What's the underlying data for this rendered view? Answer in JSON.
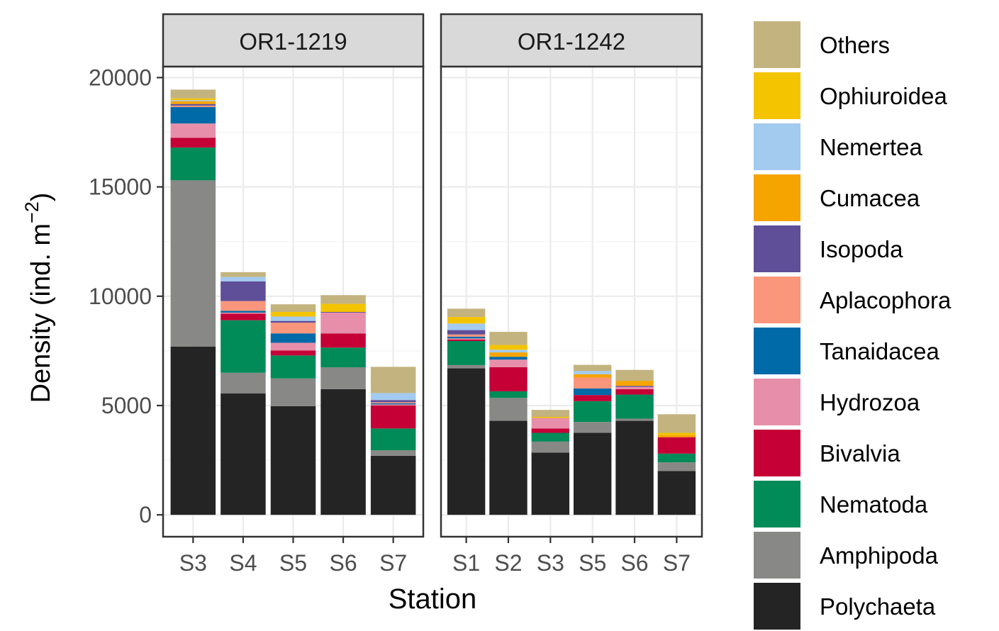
{
  "chart_data": {
    "type": "bar",
    "stacked": true,
    "facets": [
      "OR1-1219",
      "OR1-1242"
    ],
    "xlabel": "Station",
    "ylabel_prefix": "Density (ind. m",
    "ylabel_exponent": "−2",
    "ylabel_suffix": ")",
    "ylim": [
      -1000,
      20500
    ],
    "yticks": [
      0,
      5000,
      10000,
      15000,
      20000
    ],
    "grid": true,
    "legend_position": "right",
    "series": [
      {
        "name": "Polychaeta",
        "color": "#242424"
      },
      {
        "name": "Amphipoda",
        "color": "#888886"
      },
      {
        "name": "Nematoda",
        "color": "#008B58"
      },
      {
        "name": "Bivalvia",
        "color": "#C40036"
      },
      {
        "name": "Hydrozoa",
        "color": "#E78FAA"
      },
      {
        "name": "Tanaidacea",
        "color": "#0069A8"
      },
      {
        "name": "Aplacophora",
        "color": "#F9967B"
      },
      {
        "name": "Isopoda",
        "color": "#5F4E98"
      },
      {
        "name": "Cumacea",
        "color": "#F5A400"
      },
      {
        "name": "Nemertea",
        "color": "#A3CAEF"
      },
      {
        "name": "Ophiuroidea",
        "color": "#F4C400"
      },
      {
        "name": "Others",
        "color": "#C3B37F"
      }
    ],
    "legend_order": [
      "Others",
      "Ophiuroidea",
      "Nemertea",
      "Cumacea",
      "Isopoda",
      "Aplacophora",
      "Tanaidacea",
      "Hydrozoa",
      "Bivalvia",
      "Nematoda",
      "Amphipoda",
      "Polychaeta"
    ],
    "panels": [
      {
        "facet": "OR1-1219",
        "stations": [
          "S3",
          "S4",
          "S5",
          "S6",
          "S7"
        ],
        "values": [
          [
            7700,
            7600,
            1500,
            450,
            650,
            750,
            70,
            70,
            130,
            50,
            80,
            400
          ],
          [
            5550,
            950,
            2400,
            300,
            50,
            80,
            450,
            900,
            0,
            200,
            0,
            220
          ],
          [
            4970,
            1270,
            1050,
            230,
            350,
            430,
            490,
            80,
            0,
            200,
            210,
            350
          ],
          [
            5750,
            1000,
            900,
            650,
            950,
            0,
            0,
            30,
            0,
            0,
            370,
            400
          ],
          [
            2700,
            250,
            1000,
            1050,
            50,
            50,
            50,
            100,
            0,
            320,
            0,
            1200
          ]
        ]
      },
      {
        "facet": "OR1-1242",
        "stations": [
          "S1",
          "S2",
          "S3",
          "S5",
          "S6",
          "S7"
        ],
        "values": [
          [
            6700,
            150,
            1100,
            70,
            50,
            80,
            100,
            200,
            0,
            300,
            300,
            380
          ],
          [
            4300,
            1050,
            300,
            1100,
            350,
            130,
            0,
            0,
            200,
            120,
            220,
            600
          ],
          [
            2850,
            500,
            400,
            200,
            480,
            0,
            0,
            0,
            0,
            0,
            50,
            320
          ],
          [
            3750,
            500,
            950,
            280,
            0,
            300,
            500,
            0,
            150,
            150,
            0,
            280
          ],
          [
            4300,
            100,
            1100,
            250,
            100,
            0,
            0,
            50,
            230,
            0,
            0,
            500
          ],
          [
            2000,
            400,
            400,
            750,
            0,
            0,
            0,
            0,
            100,
            0,
            100,
            850
          ]
        ]
      }
    ]
  }
}
